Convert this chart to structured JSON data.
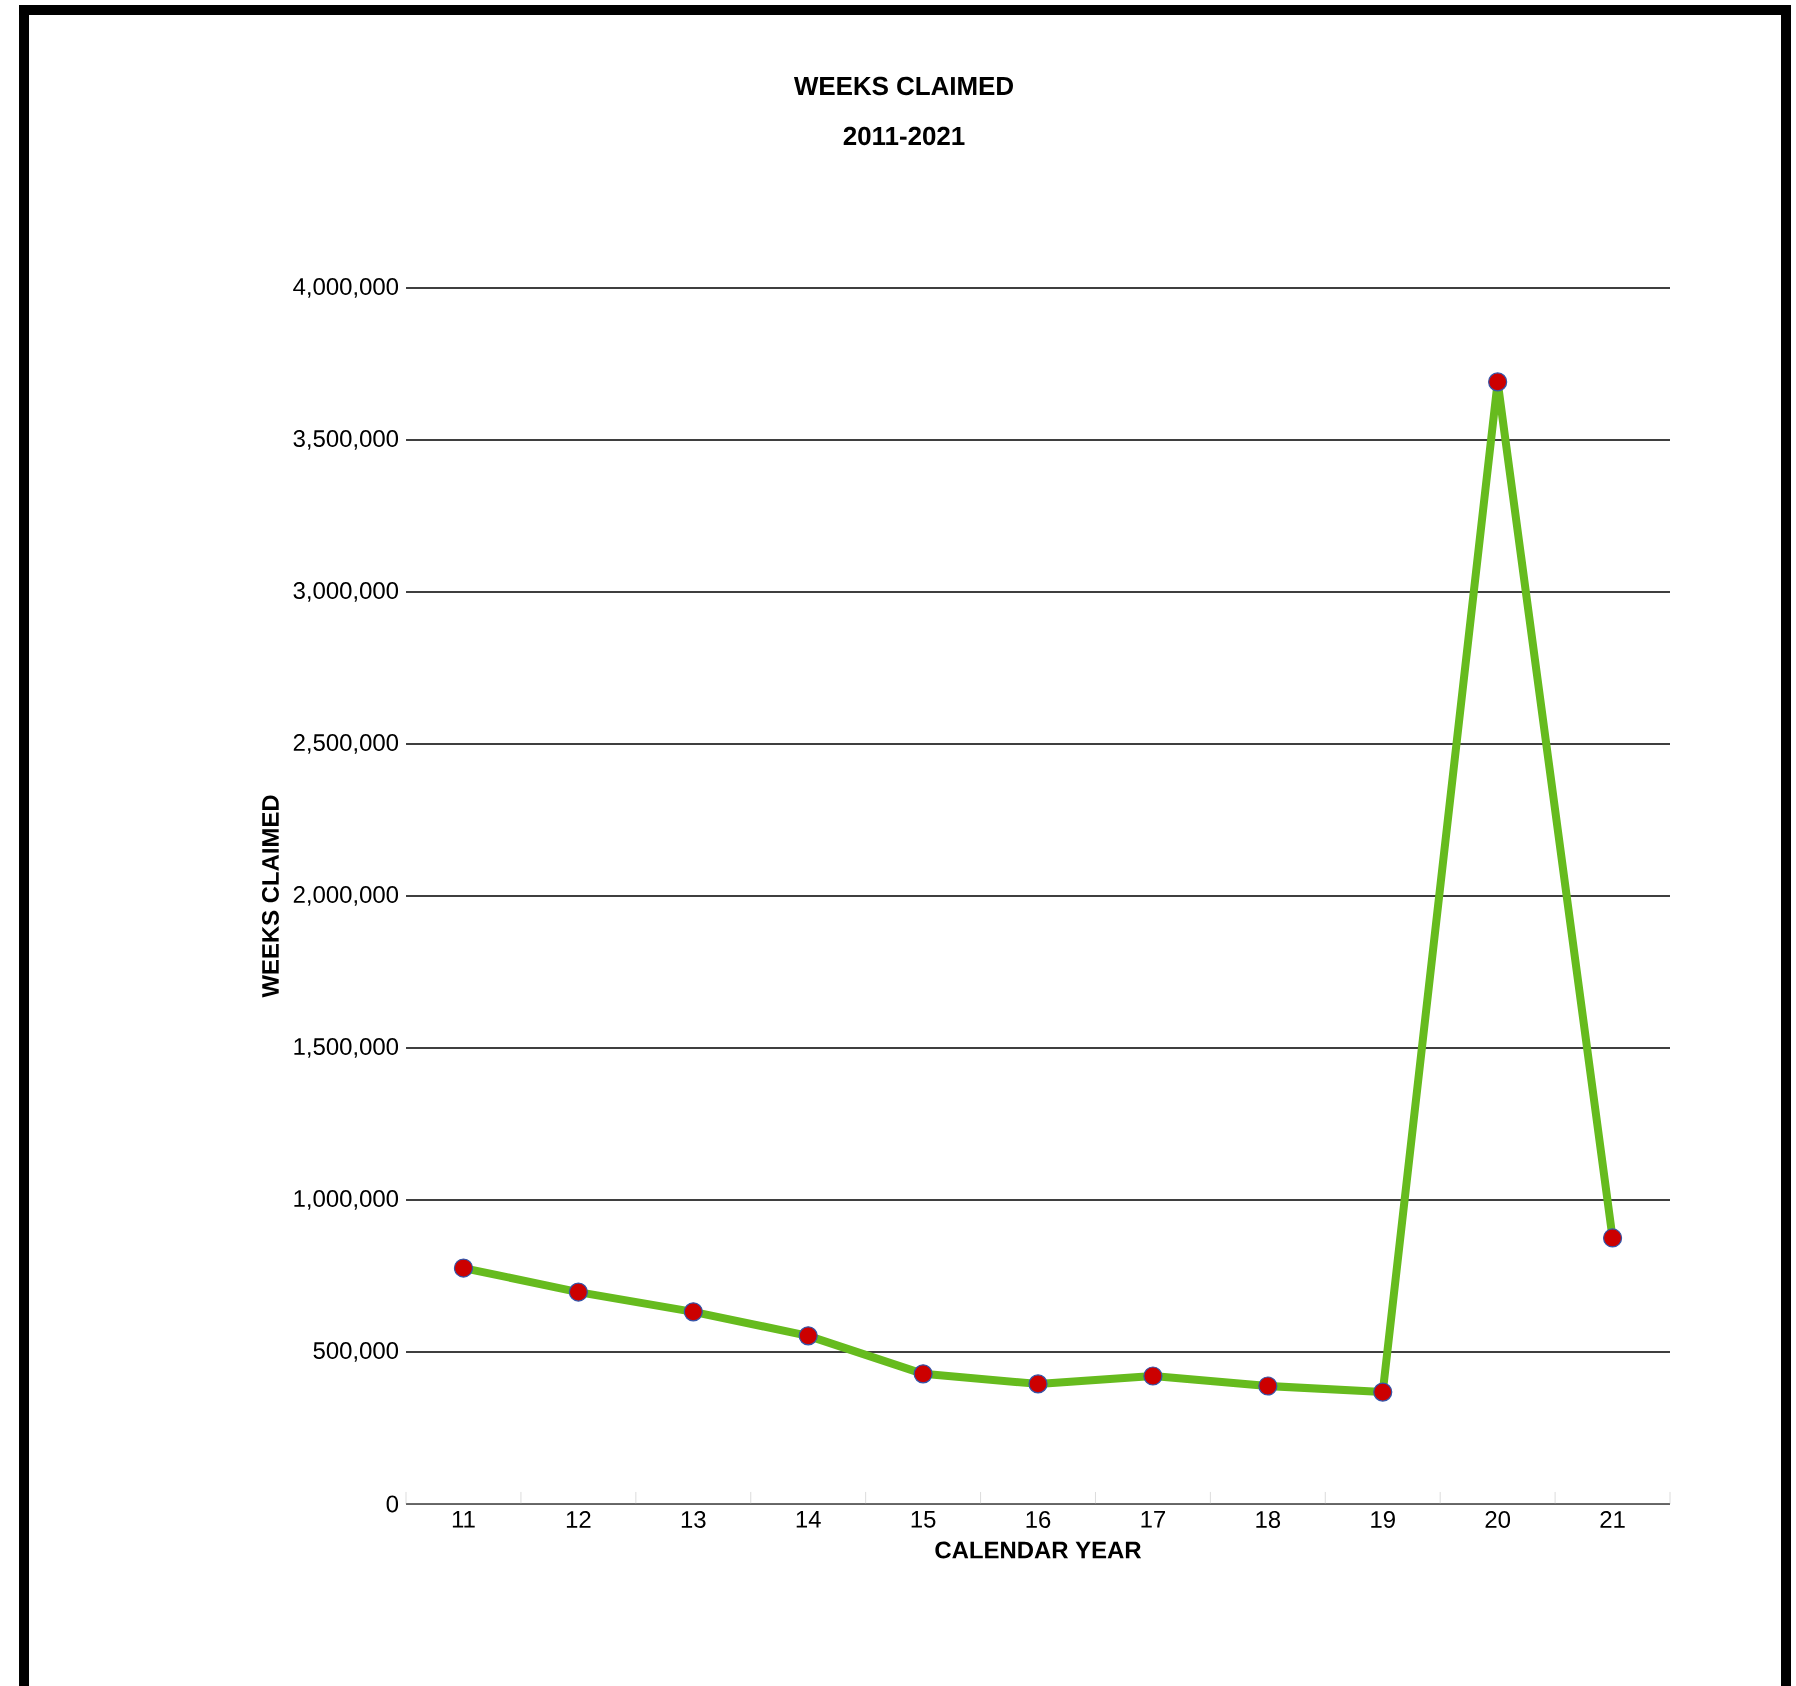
{
  "chart_data": {
    "type": "line",
    "title": "WEEKS CLAIMED",
    "subtitle": "2011-2021",
    "xlabel": "CALENDAR YEAR",
    "ylabel": "WEEKS CLAIMED",
    "categories": [
      "11",
      "12",
      "13",
      "14",
      "15",
      "16",
      "17",
      "18",
      "19",
      "20",
      "21"
    ],
    "series": [
      {
        "color": "#66bb1e",
        "values": [
          776000,
          697000,
          632000,
          553000,
          428000,
          395000,
          421000,
          388000,
          368000,
          3691000,
          875000
        ]
      }
    ],
    "ylim": [
      0,
      4000000
    ],
    "yticks": [
      {
        "value": 0,
        "label": "0"
      },
      {
        "value": 500000,
        "label": "500,000"
      },
      {
        "value": 1000000,
        "label": "1,000,000"
      },
      {
        "value": 1500000,
        "label": "1,500,000"
      },
      {
        "value": 2000000,
        "label": "2,000,000"
      },
      {
        "value": 2500000,
        "label": "2,500,000"
      },
      {
        "value": 3000000,
        "label": "3,000,000"
      },
      {
        "value": 3500000,
        "label": "3,500,000"
      },
      {
        "value": 4000000,
        "label": "4,000,000"
      }
    ],
    "grid": "y",
    "marker": "circle",
    "line_style": "solid"
  }
}
